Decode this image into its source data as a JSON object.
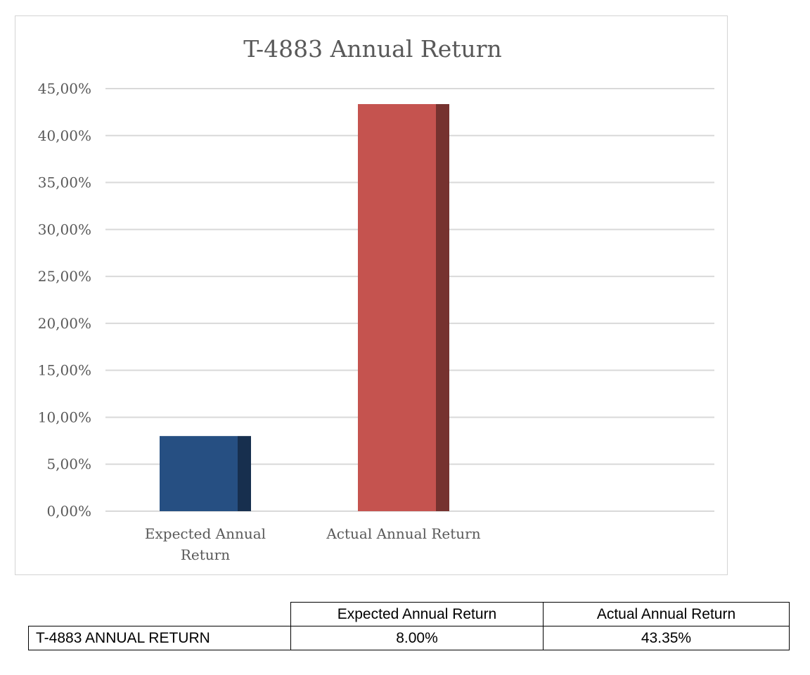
{
  "chart_data": {
    "type": "bar",
    "title": "T-4883 Annual Return",
    "categories": [
      "Expected Annual Return",
      "Actual Annual Return"
    ],
    "category_label_lines": [
      [
        "Expected Annual",
        "Return"
      ],
      [
        "Actual Annual Return"
      ]
    ],
    "values": [
      8.0,
      43.35
    ],
    "colors": [
      "#264f82",
      "#c5534f"
    ],
    "ylim": [
      0,
      45
    ],
    "y_ticks": [
      0,
      5,
      10,
      15,
      20,
      25,
      30,
      35,
      40,
      45
    ],
    "y_tick_labels": [
      "0,00%",
      "5,00%",
      "10,00%",
      "15,00%",
      "20,00%",
      "25,00%",
      "30,00%",
      "35,00%",
      "40,00%",
      "45,00%"
    ],
    "grid": true,
    "legend": "none"
  },
  "table": {
    "header": [
      "",
      "Expected Annual Return",
      "Actual Annual Return"
    ],
    "rows": [
      {
        "label": "T-4883 ANNUAL RETURN",
        "expected": "8.00%",
        "actual": "43.35%"
      }
    ]
  }
}
